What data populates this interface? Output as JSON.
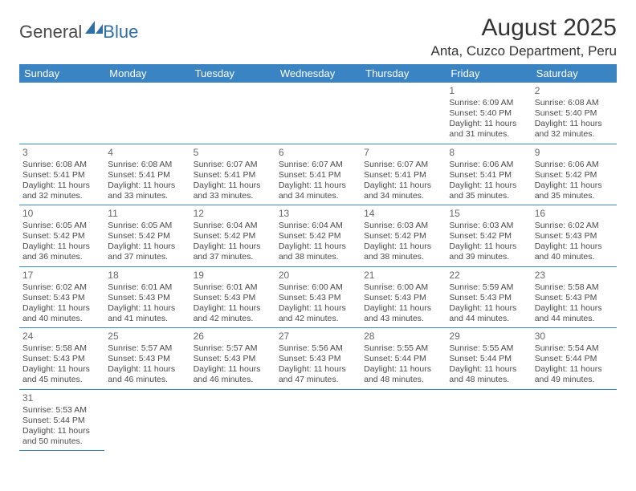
{
  "logo": {
    "text1": "General",
    "text2": "Blue"
  },
  "title": "August 2025",
  "location": "Anta, Cuzco Department, Peru",
  "colors": {
    "header_bg": "#3a84c4",
    "header_text": "#ffffff",
    "cell_border": "#3a84c4",
    "logo_blue": "#2f6fa8",
    "text": "#4a4a4a"
  },
  "dayNames": [
    "Sunday",
    "Monday",
    "Tuesday",
    "Wednesday",
    "Thursday",
    "Friday",
    "Saturday"
  ],
  "firstWeekday": 5,
  "daysInMonth": 31,
  "days": {
    "1": {
      "sunrise": "6:09 AM",
      "sunset": "5:40 PM",
      "daylight": "11 hours and 31 minutes."
    },
    "2": {
      "sunrise": "6:08 AM",
      "sunset": "5:40 PM",
      "daylight": "11 hours and 32 minutes."
    },
    "3": {
      "sunrise": "6:08 AM",
      "sunset": "5:41 PM",
      "daylight": "11 hours and 32 minutes."
    },
    "4": {
      "sunrise": "6:08 AM",
      "sunset": "5:41 PM",
      "daylight": "11 hours and 33 minutes."
    },
    "5": {
      "sunrise": "6:07 AM",
      "sunset": "5:41 PM",
      "daylight": "11 hours and 33 minutes."
    },
    "6": {
      "sunrise": "6:07 AM",
      "sunset": "5:41 PM",
      "daylight": "11 hours and 34 minutes."
    },
    "7": {
      "sunrise": "6:07 AM",
      "sunset": "5:41 PM",
      "daylight": "11 hours and 34 minutes."
    },
    "8": {
      "sunrise": "6:06 AM",
      "sunset": "5:41 PM",
      "daylight": "11 hours and 35 minutes."
    },
    "9": {
      "sunrise": "6:06 AM",
      "sunset": "5:42 PM",
      "daylight": "11 hours and 35 minutes."
    },
    "10": {
      "sunrise": "6:05 AM",
      "sunset": "5:42 PM",
      "daylight": "11 hours and 36 minutes."
    },
    "11": {
      "sunrise": "6:05 AM",
      "sunset": "5:42 PM",
      "daylight": "11 hours and 37 minutes."
    },
    "12": {
      "sunrise": "6:04 AM",
      "sunset": "5:42 PM",
      "daylight": "11 hours and 37 minutes."
    },
    "13": {
      "sunrise": "6:04 AM",
      "sunset": "5:42 PM",
      "daylight": "11 hours and 38 minutes."
    },
    "14": {
      "sunrise": "6:03 AM",
      "sunset": "5:42 PM",
      "daylight": "11 hours and 38 minutes."
    },
    "15": {
      "sunrise": "6:03 AM",
      "sunset": "5:42 PM",
      "daylight": "11 hours and 39 minutes."
    },
    "16": {
      "sunrise": "6:02 AM",
      "sunset": "5:43 PM",
      "daylight": "11 hours and 40 minutes."
    },
    "17": {
      "sunrise": "6:02 AM",
      "sunset": "5:43 PM",
      "daylight": "11 hours and 40 minutes."
    },
    "18": {
      "sunrise": "6:01 AM",
      "sunset": "5:43 PM",
      "daylight": "11 hours and 41 minutes."
    },
    "19": {
      "sunrise": "6:01 AM",
      "sunset": "5:43 PM",
      "daylight": "11 hours and 42 minutes."
    },
    "20": {
      "sunrise": "6:00 AM",
      "sunset": "5:43 PM",
      "daylight": "11 hours and 42 minutes."
    },
    "21": {
      "sunrise": "6:00 AM",
      "sunset": "5:43 PM",
      "daylight": "11 hours and 43 minutes."
    },
    "22": {
      "sunrise": "5:59 AM",
      "sunset": "5:43 PM",
      "daylight": "11 hours and 44 minutes."
    },
    "23": {
      "sunrise": "5:58 AM",
      "sunset": "5:43 PM",
      "daylight": "11 hours and 44 minutes."
    },
    "24": {
      "sunrise": "5:58 AM",
      "sunset": "5:43 PM",
      "daylight": "11 hours and 45 minutes."
    },
    "25": {
      "sunrise": "5:57 AM",
      "sunset": "5:43 PM",
      "daylight": "11 hours and 46 minutes."
    },
    "26": {
      "sunrise": "5:57 AM",
      "sunset": "5:43 PM",
      "daylight": "11 hours and 46 minutes."
    },
    "27": {
      "sunrise": "5:56 AM",
      "sunset": "5:43 PM",
      "daylight": "11 hours and 47 minutes."
    },
    "28": {
      "sunrise": "5:55 AM",
      "sunset": "5:44 PM",
      "daylight": "11 hours and 48 minutes."
    },
    "29": {
      "sunrise": "5:55 AM",
      "sunset": "5:44 PM",
      "daylight": "11 hours and 48 minutes."
    },
    "30": {
      "sunrise": "5:54 AM",
      "sunset": "5:44 PM",
      "daylight": "11 hours and 49 minutes."
    },
    "31": {
      "sunrise": "5:53 AM",
      "sunset": "5:44 PM",
      "daylight": "11 hours and 50 minutes."
    }
  },
  "labels": {
    "sunrise": "Sunrise:",
    "sunset": "Sunset:",
    "daylight": "Daylight:"
  }
}
